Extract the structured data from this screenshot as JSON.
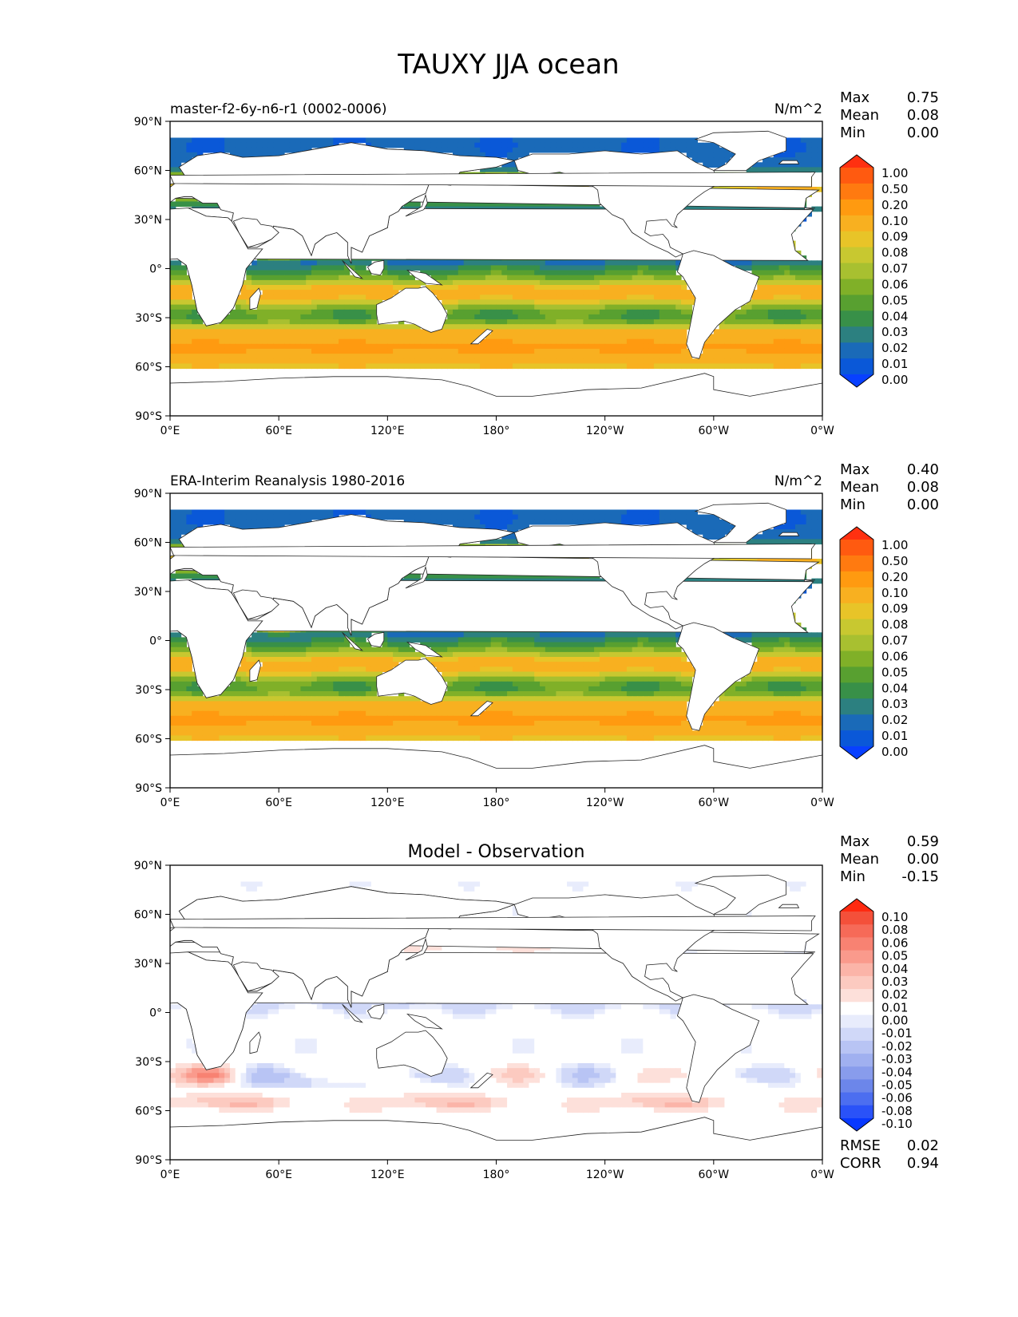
{
  "figure": {
    "title": "TAUXY JJA ocean"
  },
  "chart_data": [
    {
      "type": "heatmap",
      "panel": "model",
      "title_left": "master-f2-6y-n6-r1 (0002-0006)",
      "units": "N/m^2",
      "stats": {
        "max_label": "Max",
        "max": "0.75",
        "mean_label": "Mean",
        "mean": "0.08",
        "min_label": "Min",
        "min": "0.00"
      },
      "x_ticks": [
        "0°E",
        "60°E",
        "120°E",
        "180°",
        "120°W",
        "60°W",
        "0°W"
      ],
      "y_ticks": [
        "90°N",
        "60°N",
        "30°N",
        "0°",
        "30°S",
        "60°S",
        "90°S"
      ],
      "colorbar": {
        "levels": [
          "1.00",
          "0.50",
          "0.20",
          "0.10",
          "0.09",
          "0.08",
          "0.07",
          "0.06",
          "0.05",
          "0.04",
          "0.03",
          "0.02",
          "0.01",
          "0.00"
        ],
        "colors": [
          "#ff3010",
          "#ff5a10",
          "#ff7a10",
          "#ff9a10",
          "#f8b020",
          "#e8c428",
          "#c8c830",
          "#a8c030",
          "#80b028",
          "#58a030",
          "#389048",
          "#2c8080",
          "#1a6ab8",
          "#0a58d8",
          "#0840ff"
        ],
        "extend": "both"
      },
      "field_shown": "wind stress magnitude over ocean, JJA mean (model)"
    },
    {
      "type": "heatmap",
      "panel": "obs",
      "title_left": "ERA-Interim Reanalysis 1980-2016",
      "units": "N/m^2",
      "stats": {
        "max_label": "Max",
        "max": "0.40",
        "mean_label": "Mean",
        "mean": "0.08",
        "min_label": "Min",
        "min": "0.00"
      },
      "x_ticks": [
        "0°E",
        "60°E",
        "120°E",
        "180°",
        "120°W",
        "60°W",
        "0°W"
      ],
      "y_ticks": [
        "90°N",
        "60°N",
        "30°N",
        "0°",
        "30°S",
        "60°S",
        "90°S"
      ],
      "colorbar": {
        "levels": [
          "1.00",
          "0.50",
          "0.20",
          "0.10",
          "0.09",
          "0.08",
          "0.07",
          "0.06",
          "0.05",
          "0.04",
          "0.03",
          "0.02",
          "0.01",
          "0.00"
        ],
        "colors": [
          "#ff3010",
          "#ff5a10",
          "#ff7a10",
          "#ff9a10",
          "#f8b020",
          "#e8c428",
          "#c8c830",
          "#a8c030",
          "#80b028",
          "#58a030",
          "#389048",
          "#2c8080",
          "#1a6ab8",
          "#0a58d8",
          "#0840ff"
        ],
        "extend": "both"
      }
    },
    {
      "type": "heatmap",
      "panel": "diff",
      "title_center": "Model - Observation",
      "stats": {
        "max_label": "Max",
        "max": "0.59",
        "mean_label": "Mean",
        "mean": "0.00",
        "min_label": "Min",
        "min": "-0.15"
      },
      "extra_stats": {
        "rmse_label": "RMSE",
        "rmse": "0.02",
        "corr_label": "CORR",
        "corr": "0.94"
      },
      "x_ticks": [
        "0°E",
        "60°E",
        "120°E",
        "180°",
        "120°W",
        "60°W",
        "0°W"
      ],
      "y_ticks": [
        "90°N",
        "60°N",
        "30°N",
        "0°",
        "30°S",
        "60°S",
        "90°S"
      ],
      "colorbar": {
        "levels": [
          "0.10",
          "0.08",
          "0.06",
          "0.05",
          "0.04",
          "0.03",
          "0.02",
          "0.01",
          "0.00",
          "-0.01",
          "-0.02",
          "-0.03",
          "-0.04",
          "-0.05",
          "-0.06",
          "-0.08",
          "-0.10"
        ],
        "colors": [
          "#ff2a10",
          "#f4503a",
          "#f66a58",
          "#f88272",
          "#fa9a8c",
          "#fbb4a8",
          "#fccac0",
          "#fde0da",
          "#ffffff",
          "#e8ecfc",
          "#d0d8f8",
          "#b8c4f4",
          "#a0b0f0",
          "#889cec",
          "#6c86ea",
          "#4c6ef0",
          "#2a52f8",
          "#0838ff"
        ],
        "extend": "both"
      }
    }
  ]
}
